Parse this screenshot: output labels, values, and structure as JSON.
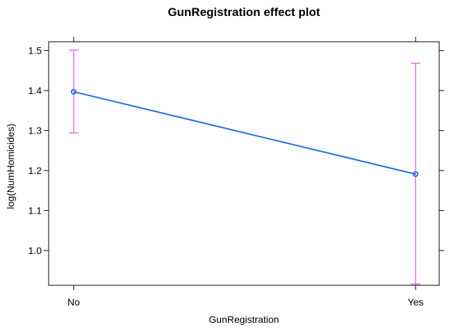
{
  "chart_data": {
    "type": "line",
    "title": "GunRegistration effect plot",
    "xlabel": "GunRegistration",
    "ylabel": "log(NumHomicides)",
    "categories": [
      "No",
      "Yes"
    ],
    "series": [
      {
        "values": [
          1.397,
          1.191
        ],
        "lower": [
          1.294,
          0.916
        ],
        "upper": [
          1.501,
          1.468
        ]
      }
    ],
    "ylim": [
      0.913,
      1.522
    ],
    "yticks": [
      1.0,
      1.1,
      1.2,
      1.3,
      1.4,
      1.5
    ],
    "ytick_labels": [
      "1.0",
      "1.1",
      "1.2",
      "1.3",
      "1.4",
      "1.5"
    ],
    "grid": false,
    "line_color": "#1f6fe6",
    "errorbar_color": "#e64be6",
    "axis_color": "#000000"
  }
}
